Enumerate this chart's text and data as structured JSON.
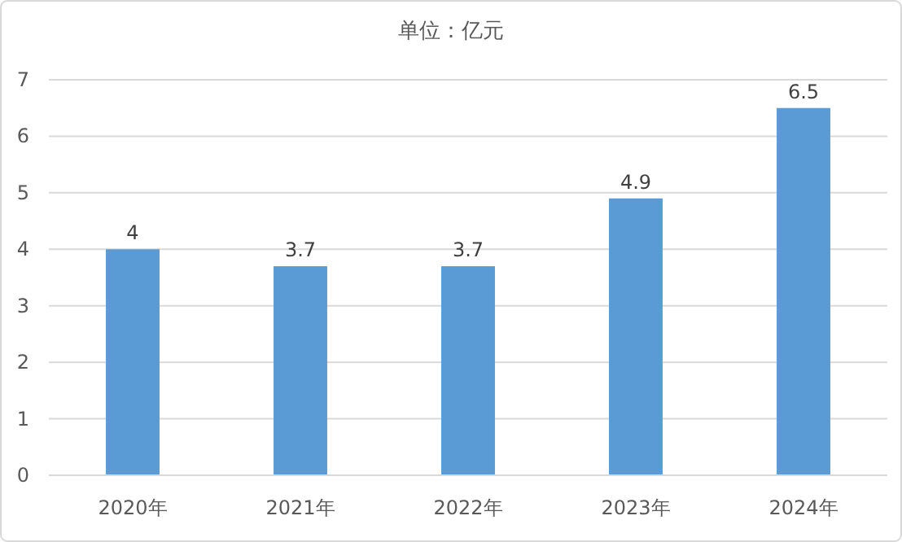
{
  "chart_data": {
    "type": "bar",
    "title": "单位：亿元",
    "categories": [
      "2020年",
      "2021年",
      "2022年",
      "2023年",
      "2024年"
    ],
    "values": [
      4,
      3.7,
      3.7,
      4.9,
      6.5
    ],
    "color": "#5b9bd5",
    "ylim": [
      0,
      7
    ],
    "yticks": [
      0,
      1,
      2,
      3,
      4,
      5,
      6,
      7
    ],
    "grid": "y",
    "data_labels": true
  }
}
